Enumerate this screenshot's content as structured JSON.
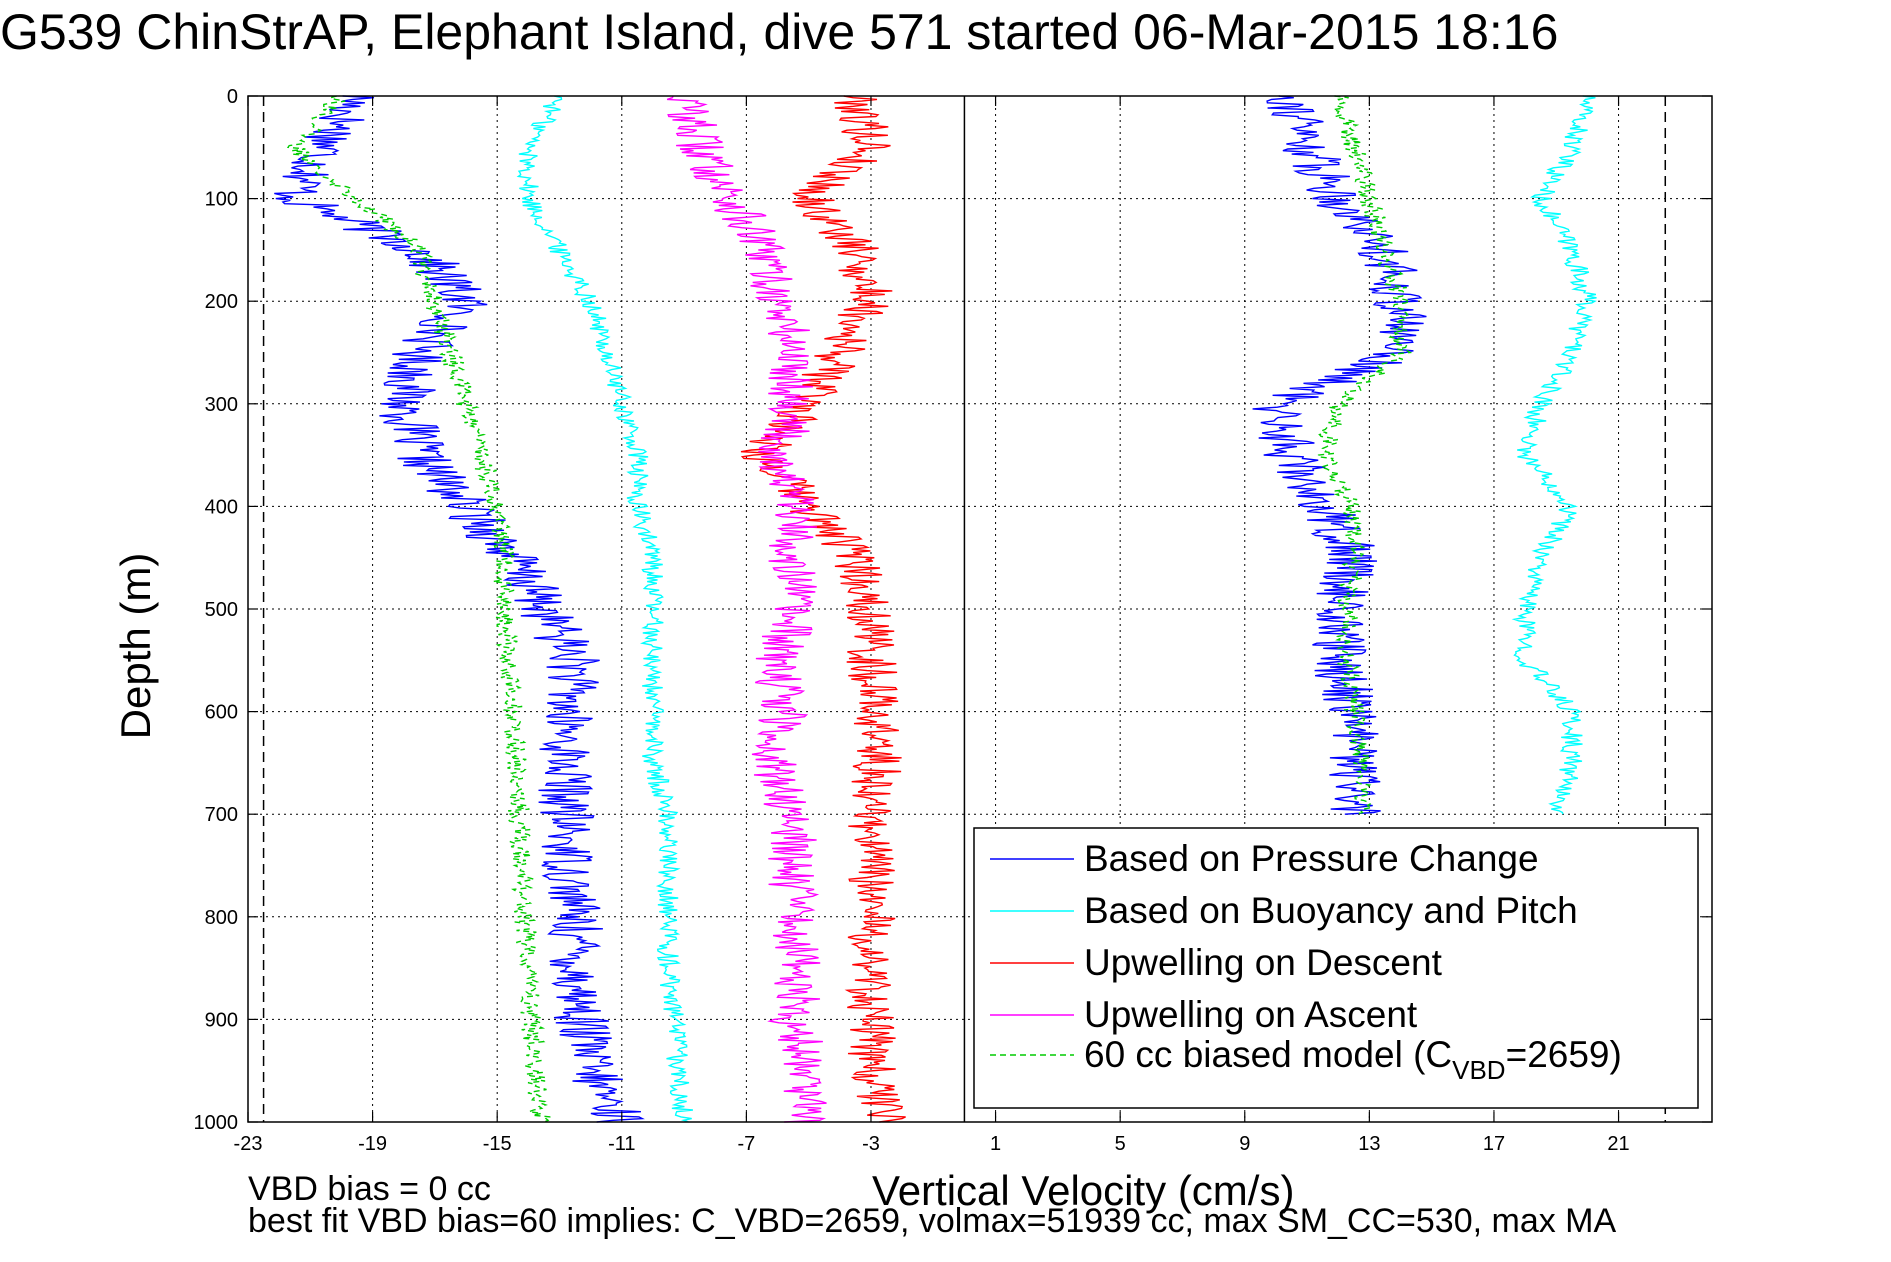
{
  "title": "G539 ChinStrAP, Elephant Island, dive 571 started 06-Mar-2015 18:16",
  "notes": {
    "line1": "VBD bias = 0 cc",
    "line2": "best fit VBD bias=60 implies: C_VBD=2659, volmax=51939 cc, max SM_CC=530, max MA"
  },
  "chart_data": {
    "type": "line",
    "title": "G539 ChinStrAP, Elephant Island, dive 571 started 06-Mar-2015 18:16",
    "xlabel": "Vertical Velocity (cm/s)",
    "ylabel": "Depth (m)",
    "xlim": [
      -23,
      24
    ],
    "ylim": [
      1000,
      0
    ],
    "y_reversed": true,
    "xticks": [
      -23,
      -19,
      -15,
      -11,
      -7,
      -3,
      1,
      5,
      9,
      13,
      17,
      21
    ],
    "yticks": [
      0,
      100,
      200,
      300,
      400,
      500,
      600,
      700,
      800,
      900,
      1000
    ],
    "grid": true,
    "legend_position": "bottom-right",
    "reference_lines": {
      "center_x": 0,
      "dashed_x": [
        -22.5,
        22.5
      ]
    },
    "depth": [
      0,
      50,
      100,
      150,
      200,
      250,
      300,
      350,
      400,
      450,
      500,
      550,
      600,
      650,
      700,
      750,
      800,
      850,
      900,
      950,
      1000
    ],
    "descent_depth": [
      0,
      50,
      100,
      150,
      200,
      250,
      300,
      350,
      400,
      450,
      500,
      550,
      600,
      650,
      700,
      750,
      800,
      850,
      900,
      950,
      1000
    ],
    "ascent_depth": [
      0,
      50,
      100,
      150,
      200,
      250,
      300,
      350,
      400,
      450,
      500,
      550,
      600,
      650,
      700
    ],
    "series": [
      {
        "name": "Based on Pressure Change",
        "color": "#0000ff",
        "style": "solid",
        "descent_x": [
          -19.5,
          -20.5,
          -21.5,
          -17.5,
          -16,
          -17.5,
          -18,
          -17.5,
          -16,
          -14.5,
          -13.5,
          -12.5,
          -12.8,
          -12.8,
          -12.8,
          -12.7,
          -12.5,
          -12.5,
          -12.3,
          -12,
          -11
        ],
        "ascent_x": [
          10.5,
          11,
          12,
          13.5,
          14,
          14,
          10,
          10.5,
          11.5,
          12.5,
          12,
          12,
          12.5,
          12.5,
          12.5
        ]
      },
      {
        "name": "Based on Buoyancy and Pitch",
        "color": "#00ffff",
        "style": "solid",
        "descent_x": [
          -13,
          -14,
          -14,
          -13,
          -12,
          -11.5,
          -11,
          -10.5,
          -10.5,
          -10,
          -10,
          -10,
          -10,
          -10,
          -9.5,
          -9.5,
          -9.5,
          -9.5,
          -9.3,
          -9.2,
          -9
        ],
        "ascent_x": [
          20,
          19.5,
          18.5,
          19.5,
          20,
          19.5,
          18.5,
          18,
          19.5,
          18.5,
          18,
          18,
          19.5,
          19.5,
          19
        ]
      },
      {
        "name": "Upwelling on Descent",
        "color": "#ff0000",
        "style": "solid",
        "descent_x": [
          -3.5,
          -3,
          -5,
          -3.5,
          -3,
          -4,
          -5,
          -6.5,
          -5,
          -3.5,
          -3,
          -3,
          -2.8,
          -2.8,
          -3,
          -3,
          -3,
          -3,
          -3,
          -3,
          -2.5
        ]
      },
      {
        "name": "Upwelling on Ascent",
        "color": "#ff00ff",
        "style": "solid",
        "descent_x": [
          -9,
          -8.5,
          -7.5,
          -6.5,
          -6,
          -5.5,
          -5.5,
          -6,
          -5.5,
          -5.5,
          -5.5,
          -6,
          -5.8,
          -6.2,
          -5.5,
          -5.5,
          -5.5,
          -5.3,
          -5.5,
          -5,
          -5
        ]
      },
      {
        "name": "60 cc biased model (C",
        "name_sub": "VBD",
        "name_suffix": "=2659)",
        "color": "#00cc00",
        "style": "dashed",
        "descent_x": [
          -20,
          -21.5,
          -19.5,
          -17.5,
          -17,
          -16.5,
          -16,
          -15.5,
          -15,
          -14.8,
          -14.8,
          -14.6,
          -14.5,
          -14.4,
          -14.3,
          -14.2,
          -14.1,
          -14,
          -13.9,
          -13.8,
          -13.6
        ],
        "ascent_x": [
          12,
          12.5,
          13,
          13.5,
          14,
          14,
          12,
          11.5,
          12.5,
          12.5,
          12.3,
          12.3,
          12.5,
          12.8,
          12.8
        ]
      }
    ]
  }
}
